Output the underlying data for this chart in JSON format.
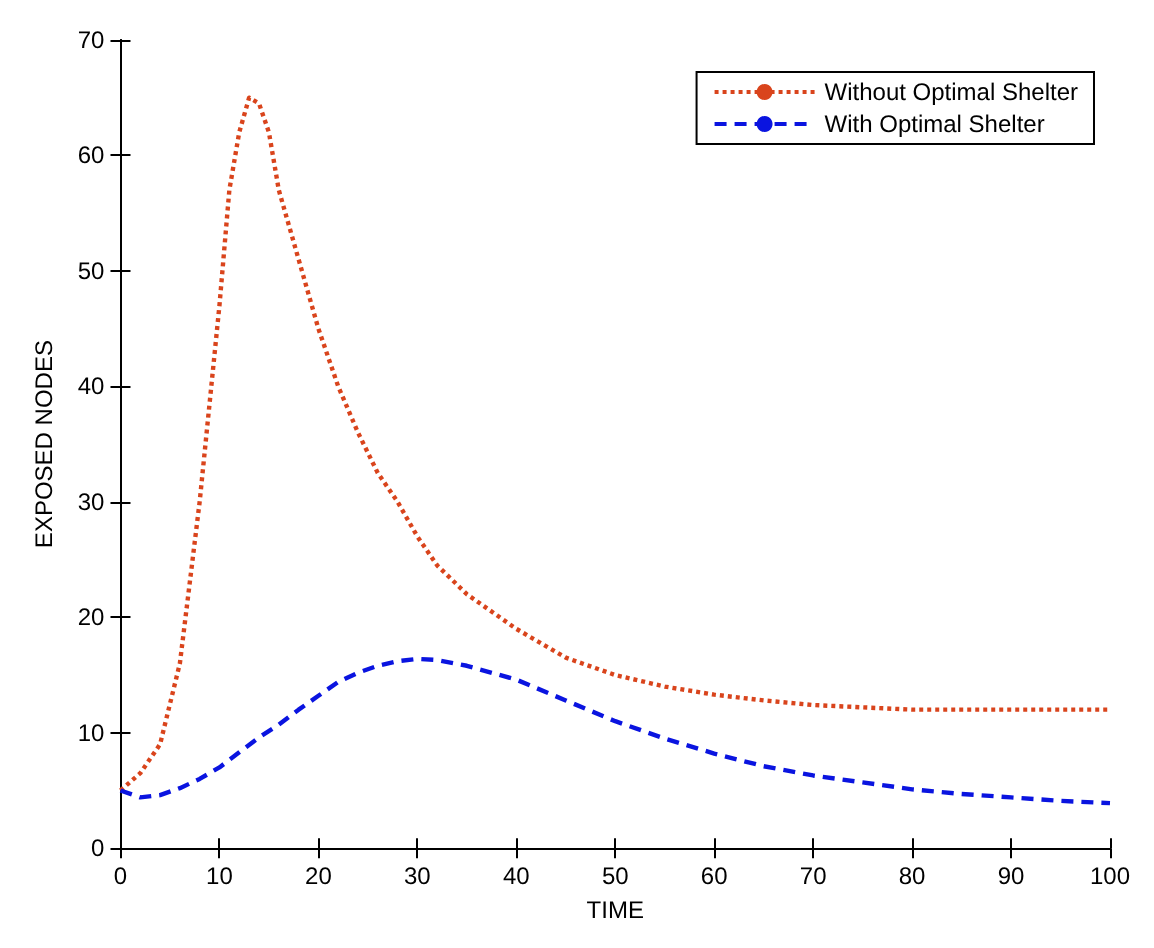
{
  "chart_data": {
    "type": "line",
    "xlabel": "TIME",
    "ylabel": "EXPOSED NODES",
    "xlim": [
      0,
      100
    ],
    "ylim": [
      0,
      70
    ],
    "xticks": [
      0,
      10,
      20,
      30,
      40,
      50,
      60,
      70,
      80,
      90,
      100
    ],
    "yticks": [
      0,
      10,
      20,
      30,
      40,
      50,
      60,
      70
    ],
    "grid": false,
    "legend": "top right",
    "marker": "none",
    "series": [
      {
        "name": "Without Optimal Shelter",
        "color": "#d9441c",
        "line_style": "dotted",
        "x": [
          0,
          2,
          4,
          6,
          8,
          10,
          11,
          12,
          13,
          14,
          15,
          16,
          18,
          20,
          22,
          24,
          26,
          28,
          30,
          32,
          35,
          40,
          45,
          50,
          55,
          60,
          65,
          70,
          75,
          80,
          90,
          100
        ],
        "values": [
          5,
          6.5,
          9,
          16,
          30,
          47,
          57,
          62,
          65,
          64.5,
          62,
          57,
          51,
          45,
          40,
          36,
          32.5,
          30,
          27,
          24.5,
          22,
          19,
          16.5,
          15,
          14,
          13.3,
          12.8,
          12.4,
          12.2,
          12,
          12,
          12
        ]
      },
      {
        "name": "With Optimal Shelter",
        "color": "#0a14e0",
        "line_style": "dashed",
        "x": [
          0,
          2,
          4,
          6,
          8,
          10,
          12,
          14,
          16,
          18,
          20,
          22,
          24,
          26,
          28,
          30,
          32,
          35,
          40,
          45,
          50,
          55,
          60,
          65,
          70,
          75,
          80,
          85,
          90,
          95,
          100
        ],
        "values": [
          5,
          4.4,
          4.6,
          5.2,
          6,
          7,
          8.3,
          9.6,
          10.7,
          12,
          13.2,
          14.4,
          15.2,
          15.8,
          16.2,
          16.4,
          16.3,
          15.8,
          14.6,
          12.8,
          11,
          9.5,
          8.2,
          7.1,
          6.3,
          5.7,
          5.1,
          4.7,
          4.4,
          4.1,
          3.9
        ]
      }
    ]
  }
}
